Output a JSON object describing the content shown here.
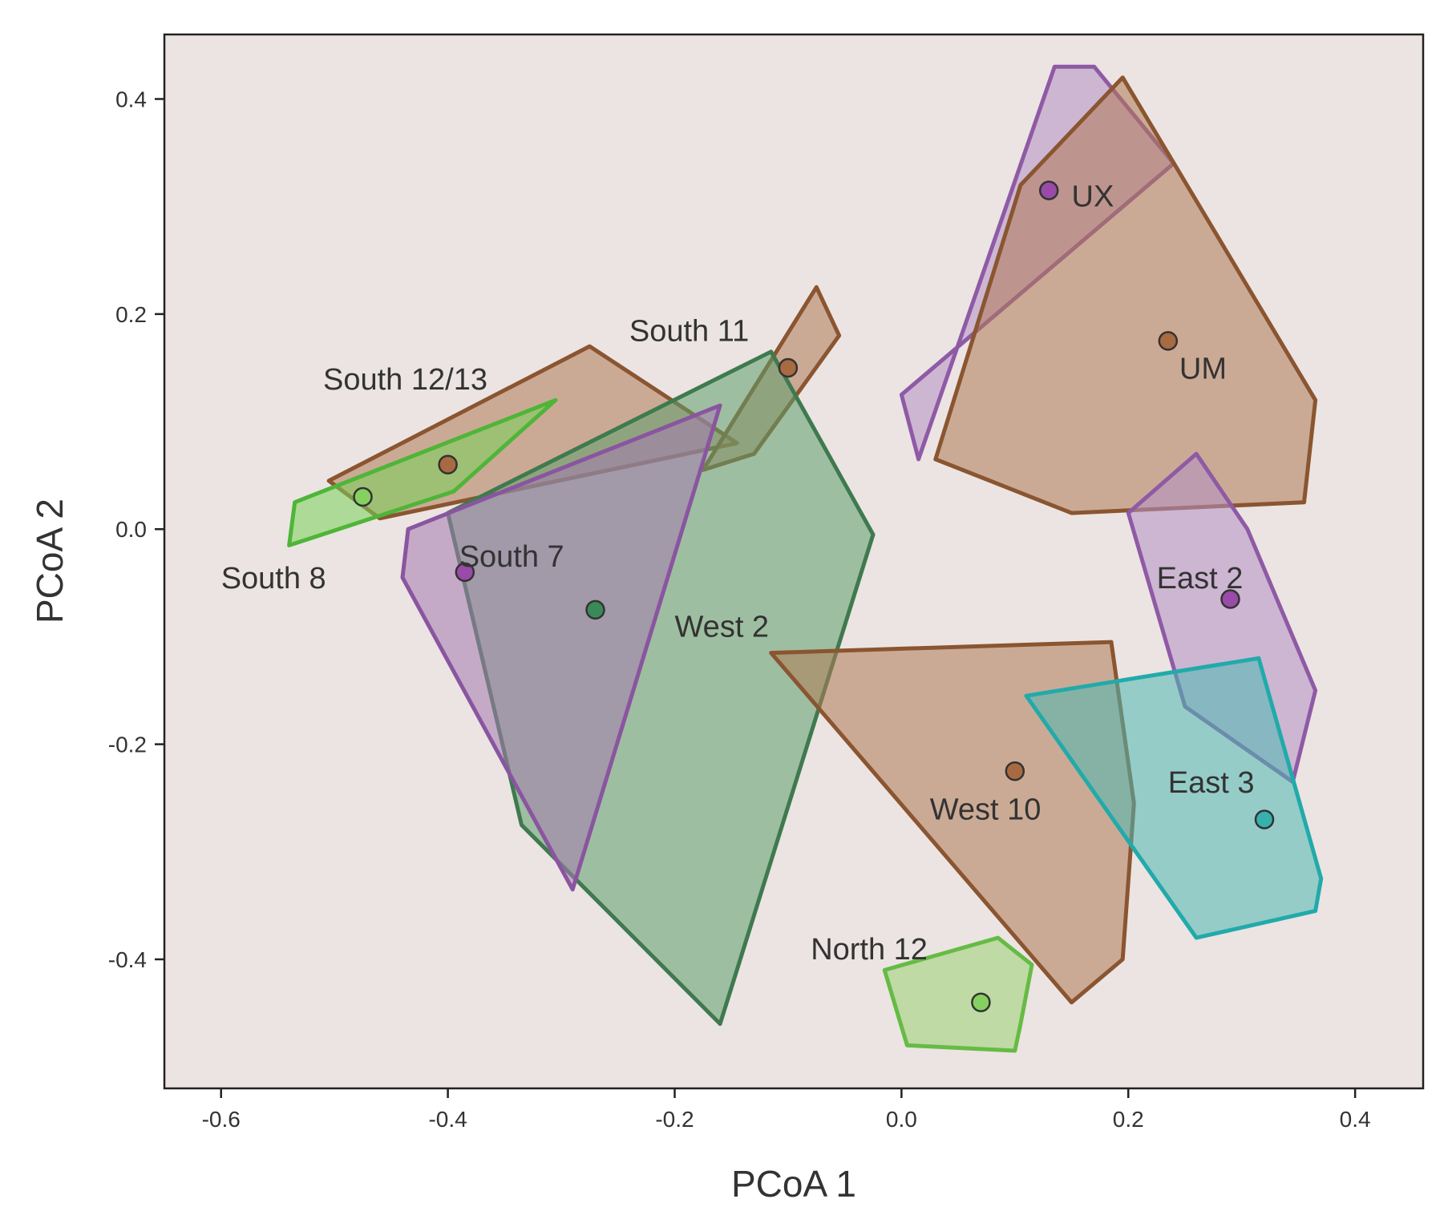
{
  "chart_data": {
    "type": "scatter",
    "title": "",
    "xlabel": "PCoA 1",
    "ylabel": "PCoA 2",
    "xlim": [
      -0.65,
      0.46
    ],
    "ylim": [
      -0.52,
      0.46
    ],
    "xticks": [
      {
        "value": -0.6,
        "label": "-0.6"
      },
      {
        "value": -0.4,
        "label": "-0.4"
      },
      {
        "value": -0.2,
        "label": "-0.2"
      },
      {
        "value": 0.0,
        "label": "0.0"
      },
      {
        "value": 0.2,
        "label": "0.2"
      },
      {
        "value": 0.4,
        "label": "0.4"
      }
    ],
    "yticks": [
      {
        "value": -0.4,
        "label": "-0.4"
      },
      {
        "value": -0.2,
        "label": "-0.2"
      },
      {
        "value": 0.0,
        "label": "0.0"
      },
      {
        "value": 0.2,
        "label": "0.2"
      },
      {
        "value": 0.4,
        "label": "0.4"
      }
    ],
    "grid": false,
    "background_color": "#ebe4e2",
    "groups": [
      {
        "name": "South 12/13",
        "key": "south-12-13",
        "fill": "#b07a55",
        "stroke": "#8a5530",
        "point": "#a86a40",
        "centroid": [
          -0.4,
          0.06
        ],
        "hull": [
          [
            -0.505,
            0.045
          ],
          [
            -0.275,
            0.17
          ],
          [
            -0.145,
            0.08
          ],
          [
            -0.46,
            0.01
          ]
        ]
      },
      {
        "name": "South 8",
        "key": "south-8",
        "fill": "#7ad15a",
        "stroke": "#4fb538",
        "point": "#86d060",
        "centroid": [
          -0.475,
          0.03
        ],
        "hull": [
          [
            -0.535,
            0.025
          ],
          [
            -0.305,
            0.12
          ],
          [
            -0.395,
            0.035
          ],
          [
            -0.54,
            -0.015
          ]
        ]
      },
      {
        "name": "South 11",
        "key": "south-11",
        "fill": "#b07a55",
        "stroke": "#8a5530",
        "point": "#a86a40",
        "centroid": [
          -0.1,
          0.15
        ],
        "hull": [
          [
            -0.075,
            0.225
          ],
          [
            -0.055,
            0.18
          ],
          [
            -0.13,
            0.07
          ],
          [
            -0.175,
            0.055
          ]
        ]
      },
      {
        "name": "West 2",
        "key": "west-2",
        "fill": "#5f9e6c",
        "stroke": "#3f7a4f",
        "point": "#3a8a58",
        "centroid": [
          -0.27,
          -0.075
        ],
        "hull": [
          [
            -0.115,
            0.165
          ],
          [
            -0.025,
            -0.005
          ],
          [
            -0.16,
            -0.46
          ],
          [
            -0.335,
            -0.275
          ],
          [
            -0.4,
            0.015
          ]
        ]
      },
      {
        "name": "South 7",
        "key": "south-7",
        "fill": "#a67ab0",
        "stroke": "#8a55a0",
        "point": "#9a4aa8",
        "centroid": [
          -0.385,
          -0.04
        ],
        "hull": [
          [
            -0.435,
            0.0
          ],
          [
            -0.16,
            0.115
          ],
          [
            -0.29,
            -0.335
          ],
          [
            -0.44,
            -0.045
          ]
        ]
      },
      {
        "name": "UX",
        "key": "ux",
        "fill": "#b48fc4",
        "stroke": "#8f5aa5",
        "point": "#9a4aa8",
        "centroid": [
          0.13,
          0.315
        ],
        "hull": [
          [
            0.135,
            0.43
          ],
          [
            0.17,
            0.43
          ],
          [
            0.24,
            0.34
          ],
          [
            -0.0,
            0.125
          ],
          [
            0.015,
            0.065
          ]
        ]
      },
      {
        "name": "UM",
        "key": "um",
        "fill": "#b07a55",
        "stroke": "#8a5530",
        "point": "#a86a40",
        "centroid": [
          0.235,
          0.175
        ],
        "hull": [
          [
            0.105,
            0.32
          ],
          [
            0.195,
            0.42
          ],
          [
            0.365,
            0.12
          ],
          [
            0.355,
            0.025
          ],
          [
            0.15,
            0.015
          ],
          [
            0.03,
            0.065
          ]
        ]
      },
      {
        "name": "East 2",
        "key": "east-2",
        "fill": "#b48fc4",
        "stroke": "#8f5aa5",
        "point": "#9a4aa8",
        "centroid": [
          0.29,
          -0.065
        ],
        "hull": [
          [
            0.26,
            0.07
          ],
          [
            0.305,
            0.0
          ],
          [
            0.365,
            -0.15
          ],
          [
            0.345,
            -0.235
          ],
          [
            0.25,
            -0.165
          ],
          [
            0.2,
            0.015
          ]
        ]
      },
      {
        "name": "West 10",
        "key": "west-10",
        "fill": "#b07a55",
        "stroke": "#8a5530",
        "point": "#a86a40",
        "centroid": [
          0.1,
          -0.225
        ],
        "hull": [
          [
            -0.115,
            -0.115
          ],
          [
            0.185,
            -0.105
          ],
          [
            0.205,
            -0.255
          ],
          [
            0.195,
            -0.4
          ],
          [
            0.15,
            -0.44
          ]
        ]
      },
      {
        "name": "East 3",
        "key": "east-3",
        "fill": "#4fb8b3",
        "stroke": "#22aaaa",
        "point": "#37b0ae",
        "centroid": [
          0.32,
          -0.27
        ],
        "hull": [
          [
            0.11,
            -0.155
          ],
          [
            0.315,
            -0.12
          ],
          [
            0.37,
            -0.325
          ],
          [
            0.365,
            -0.355
          ],
          [
            0.26,
            -0.38
          ]
        ]
      },
      {
        "name": "North 12",
        "key": "north-12",
        "fill": "#9ad273",
        "stroke": "#66bb44",
        "point": "#86d060",
        "centroid": [
          0.07,
          -0.44
        ],
        "hull": [
          [
            -0.015,
            -0.41
          ],
          [
            0.085,
            -0.38
          ],
          [
            0.115,
            -0.405
          ],
          [
            0.105,
            -0.46
          ],
          [
            0.1,
            -0.485
          ],
          [
            0.005,
            -0.48
          ]
        ]
      }
    ],
    "labels": [
      {
        "text": "South 12/13",
        "at": [
          -0.51,
          0.13
        ],
        "anchor": "start"
      },
      {
        "text": "South 11",
        "at": [
          -0.24,
          0.175
        ],
        "anchor": "start"
      },
      {
        "text": "South 8",
        "at": [
          -0.6,
          -0.055
        ],
        "anchor": "start"
      },
      {
        "text": "South 7",
        "at": [
          -0.39,
          -0.035
        ],
        "anchor": "start"
      },
      {
        "text": "West 2",
        "at": [
          -0.2,
          -0.1
        ],
        "anchor": "start"
      },
      {
        "text": "UX",
        "at": [
          0.15,
          0.3
        ],
        "anchor": "start"
      },
      {
        "text": "UM",
        "at": [
          0.245,
          0.14
        ],
        "anchor": "start"
      },
      {
        "text": "East 2",
        "at": [
          0.225,
          -0.055
        ],
        "anchor": "start"
      },
      {
        "text": "West 10",
        "at": [
          0.025,
          -0.27
        ],
        "anchor": "start"
      },
      {
        "text": "East 3",
        "at": [
          0.235,
          -0.245
        ],
        "anchor": "start"
      },
      {
        "text": "North 12",
        "at": [
          -0.08,
          -0.4
        ],
        "anchor": "start"
      }
    ]
  }
}
